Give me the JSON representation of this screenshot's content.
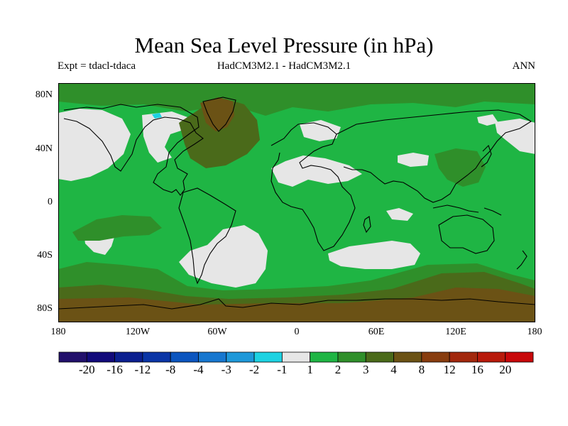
{
  "title": "Mean Sea Level Pressure (in hPa)",
  "subtitle_left": "Expt = tdacl-tdaca",
  "subtitle_center": "HadCM3M2.1 - HadCM3M2.1",
  "subtitle_right": "ANN",
  "lat_ticks": [
    "80N",
    "40N",
    "0",
    "40S",
    "80S"
  ],
  "lon_ticks": [
    "180",
    "120W",
    "60W",
    "0",
    "60E",
    "120E",
    "180"
  ],
  "colorbar": {
    "colors": [
      "#22106b",
      "#120a7a",
      "#0b1f8f",
      "#0a35a6",
      "#0b55bf",
      "#1777cf",
      "#1e98d9",
      "#1dd2e2",
      "#e6e6e6",
      "#1fb544",
      "#2f8f2a",
      "#4a6a1a",
      "#6b5215",
      "#883d0f",
      "#a2280d",
      "#b81a0b",
      "#c8080a"
    ],
    "labels": [
      "-20",
      "-16",
      "-12",
      "-8",
      "-4",
      "-3",
      "-2",
      "-1",
      "1",
      "2",
      "3",
      "4",
      "8",
      "12",
      "16",
      "20"
    ]
  },
  "colors": {
    "background_anomaly": "#1fb544",
    "near_zero": "#e6e6e6",
    "positive_3": "#2f8f2a",
    "positive_4": "#4a6a1a",
    "positive_8": "#6b5215",
    "negative_1": "#1dd2e2",
    "coastline": "#000000"
  }
}
